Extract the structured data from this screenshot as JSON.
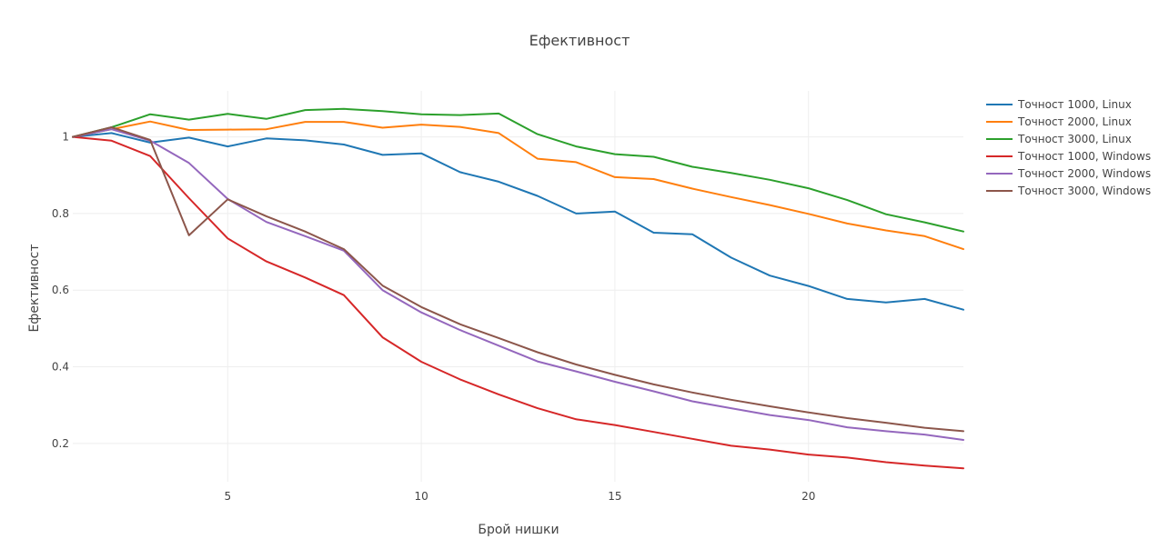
{
  "chart_data": {
    "type": "line",
    "title": "Ефективност",
    "xlabel": "Брой нишки",
    "ylabel": "Ефективност",
    "xlim": [
      1,
      24
    ],
    "ylim": [
      0.1,
      1.12
    ],
    "xticks": [
      5,
      10,
      15,
      20
    ],
    "yticks": [
      0.2,
      0.4,
      0.6,
      0.8,
      1
    ],
    "grid": true,
    "legend_position": "top-right",
    "x": [
      1,
      2,
      3,
      4,
      5,
      6,
      7,
      8,
      9,
      10,
      11,
      12,
      13,
      14,
      15,
      16,
      17,
      18,
      19,
      20,
      21,
      22,
      23,
      24
    ],
    "series": [
      {
        "name": "Точност 1000, Linux",
        "color": "#1f77b4",
        "values": [
          1.0,
          1.01,
          0.985,
          0.998,
          0.975,
          0.996,
          0.991,
          0.98,
          0.953,
          0.957,
          0.908,
          0.883,
          0.846,
          0.8,
          0.805,
          0.75,
          0.746,
          0.685,
          0.638,
          0.611,
          0.577,
          0.568,
          0.577,
          0.549
        ]
      },
      {
        "name": "Точност 2000, Linux",
        "color": "#ff7f0e",
        "values": [
          1.0,
          1.02,
          1.04,
          1.018,
          1.019,
          1.02,
          1.039,
          1.039,
          1.024,
          1.032,
          1.026,
          1.01,
          0.943,
          0.934,
          0.895,
          0.89,
          0.865,
          0.843,
          0.822,
          0.799,
          0.774,
          0.756,
          0.741,
          0.707
        ]
      },
      {
        "name": "Точност 3000, Linux",
        "color": "#2ca02c",
        "values": [
          1.0,
          1.025,
          1.059,
          1.045,
          1.06,
          1.047,
          1.07,
          1.073,
          1.067,
          1.059,
          1.057,
          1.061,
          1.007,
          0.975,
          0.955,
          0.948,
          0.922,
          0.906,
          0.888,
          0.866,
          0.835,
          0.798,
          0.777,
          0.753
        ]
      },
      {
        "name": "Точност 1000, Windows",
        "color": "#d62728",
        "values": [
          1.0,
          0.99,
          0.95,
          0.84,
          0.735,
          0.675,
          0.633,
          0.587,
          0.477,
          0.413,
          0.367,
          0.328,
          0.292,
          0.263,
          0.248,
          0.23,
          0.212,
          0.194,
          0.184,
          0.171,
          0.163,
          0.151,
          0.142,
          0.135
        ]
      },
      {
        "name": "Точност 2000, Windows",
        "color": "#9467bd",
        "values": [
          1.0,
          1.02,
          0.99,
          0.932,
          0.838,
          0.778,
          0.741,
          0.703,
          0.6,
          0.542,
          0.496,
          0.455,
          0.414,
          0.388,
          0.361,
          0.336,
          0.31,
          0.292,
          0.274,
          0.261,
          0.242,
          0.232,
          0.223,
          0.209
        ]
      },
      {
        "name": "Точност 3000, Windows",
        "color": "#8c564b",
        "values": [
          1.0,
          1.025,
          0.992,
          0.743,
          0.837,
          0.793,
          0.753,
          0.707,
          0.612,
          0.556,
          0.511,
          0.475,
          0.438,
          0.406,
          0.379,
          0.354,
          0.333,
          0.314,
          0.297,
          0.281,
          0.266,
          0.254,
          0.241,
          0.232
        ]
      }
    ]
  }
}
